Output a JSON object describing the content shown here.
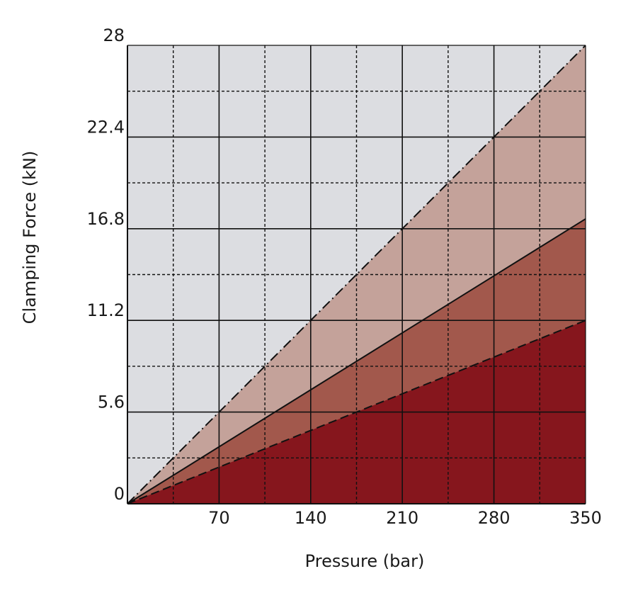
{
  "chart_data": {
    "type": "area",
    "xlabel": "Pressure (bar)",
    "ylabel": "Clamping Force (kN)",
    "xlim": [
      0,
      350
    ],
    "ylim": [
      0,
      28
    ],
    "x_ticks": [
      0,
      70,
      140,
      210,
      280,
      350
    ],
    "x_tick_labels": [
      "",
      "70",
      "140",
      "210",
      "280",
      "350"
    ],
    "y_ticks": [
      0,
      5.6,
      11.2,
      16.8,
      22.4,
      28
    ],
    "y_tick_labels": [
      "0",
      "5.6",
      "11.2",
      "16.8",
      "22.4",
      "28"
    ],
    "minor_grid_x": [
      35,
      105,
      175,
      245,
      315
    ],
    "minor_grid_y": [
      2.8,
      8.4,
      14,
      19.6,
      25.2
    ],
    "grid": true,
    "series": [
      {
        "x": [
          0,
          350
        ],
        "y": [
          0,
          28
        ],
        "line_style": "dash-dot",
        "fill": "#c4a29a"
      },
      {
        "x": [
          0,
          350
        ],
        "y": [
          0,
          17.4
        ],
        "line_style": "solid",
        "fill": "#a2584c"
      },
      {
        "x": [
          0,
          350
        ],
        "y": [
          0,
          11.2
        ],
        "line_style": "dashed",
        "fill": "#86161d"
      }
    ],
    "colors": {
      "background": "#dcdde1",
      "grid": "#111111"
    }
  }
}
